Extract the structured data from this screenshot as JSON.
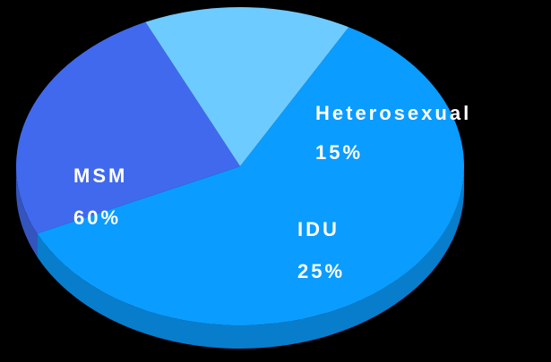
{
  "chart_data": {
    "type": "pie",
    "categories": [
      "MSM",
      "IDU",
      "Heterosexual"
    ],
    "values": [
      60,
      25,
      15
    ],
    "value_labels": [
      "60%",
      "25%",
      "15%"
    ],
    "colors": [
      "#0a9cff",
      "#4169ee",
      "#6ecbff"
    ]
  }
}
